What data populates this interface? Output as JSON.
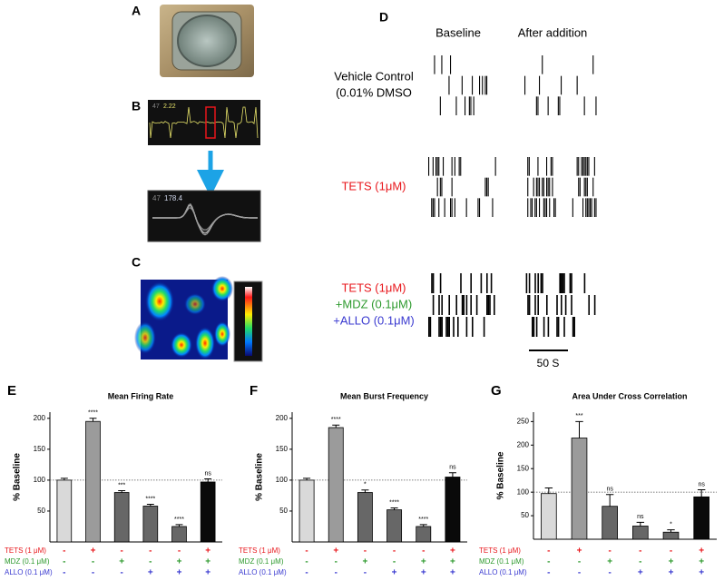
{
  "panel_letters": [
    "A",
    "B",
    "C",
    "D"
  ],
  "trace_labels": [
    "47",
    "2.22"
  ],
  "inset_labels": [
    "47",
    "178.4"
  ],
  "raster": {
    "column_titles": [
      "Baseline",
      "After addition"
    ],
    "row_labels": [
      [
        "Vehicle Control",
        "(0.01% DMSO"
      ],
      [
        "TETS (1μM)"
      ],
      [
        "TETS (1μM)",
        "+MDZ (0.1μM)",
        "+ALLO (0.1μM)"
      ]
    ],
    "row_label_colors": [
      [
        "#000000",
        "#000000"
      ],
      [
        "#e8161b"
      ],
      [
        "#e8161b",
        "#2e9a2e",
        "#3a3ad0"
      ]
    ],
    "scale_bar": "50 S"
  },
  "chart_data": [
    {
      "type": "bar",
      "panel": "E",
      "title": "Mean Firing Rate",
      "y_label": "% Baseline",
      "ylim": [
        0,
        210
      ],
      "yticks": [
        50,
        100,
        150,
        200
      ],
      "refline": 100,
      "values": [
        100,
        195,
        80,
        58,
        25,
        97
      ],
      "errors": [
        3,
        5,
        3,
        3,
        3,
        5
      ],
      "sig_labels": [
        null,
        "****",
        "***",
        "****",
        "****",
        "ns"
      ],
      "colors": [
        "#d9d9d9",
        "#9b9b9b",
        "#676767",
        "#676767",
        "#676767",
        "#0a0a0a"
      ],
      "conditions": [
        {
          "name": "TETS (1 μM)",
          "color": "#e8161b",
          "signs": [
            "-",
            "+",
            "-",
            "-",
            "-",
            "+"
          ]
        },
        {
          "name": "MDZ (0.1 μM)",
          "color": "#2e9a2e",
          "signs": [
            "-",
            "-",
            "+",
            "-",
            "+",
            "+"
          ]
        },
        {
          "name": "ALLO (0.1 μM)",
          "color": "#3a3ad0",
          "signs": [
            "-",
            "-",
            "-",
            "+",
            "+",
            "+"
          ]
        }
      ]
    },
    {
      "type": "bar",
      "panel": "F",
      "title": "Mean Burst Frequency",
      "y_label": "% Baseline",
      "ylim": [
        0,
        210
      ],
      "yticks": [
        50,
        100,
        150,
        200
      ],
      "refline": 100,
      "values": [
        100,
        185,
        80,
        52,
        25,
        105
      ],
      "errors": [
        3,
        4,
        4,
        3,
        3,
        7
      ],
      "sig_labels": [
        null,
        "****",
        "*",
        "****",
        "****",
        "ns"
      ],
      "colors": [
        "#d9d9d9",
        "#9b9b9b",
        "#676767",
        "#676767",
        "#676767",
        "#0a0a0a"
      ],
      "conditions": [
        {
          "name": "TETS (1 μM)",
          "color": "#e8161b",
          "signs": [
            "-",
            "+",
            "-",
            "-",
            "-",
            "+"
          ]
        },
        {
          "name": "MDZ (0.1 μM)",
          "color": "#2e9a2e",
          "signs": [
            "-",
            "-",
            "+",
            "-",
            "+",
            "+"
          ]
        },
        {
          "name": "ALLO (0.1 μM)",
          "color": "#3a3ad0",
          "signs": [
            "-",
            "-",
            "-",
            "+",
            "+",
            "+"
          ]
        }
      ]
    },
    {
      "type": "bar",
      "panel": "G",
      "title": "Area Under Cross Correlation",
      "y_label": "% Baseline",
      "ylim": [
        0,
        270
      ],
      "yticks": [
        50,
        100,
        150,
        200,
        250
      ],
      "refline": 100,
      "values": [
        97,
        215,
        70,
        28,
        15,
        90
      ],
      "errors": [
        12,
        35,
        25,
        8,
        5,
        15
      ],
      "sig_labels": [
        null,
        "***",
        "ns",
        "ns",
        "*",
        "ns"
      ],
      "colors": [
        "#d9d9d9",
        "#9b9b9b",
        "#676767",
        "#676767",
        "#676767",
        "#0a0a0a"
      ],
      "conditions": [
        {
          "name": "TETS (1 μM)",
          "color": "#e8161b",
          "signs": [
            "-",
            "+",
            "-",
            "-",
            "-",
            "+"
          ]
        },
        {
          "name": "MDZ (0.1 μM)",
          "color": "#2e9a2e",
          "signs": [
            "-",
            "-",
            "+",
            "-",
            "+",
            "+"
          ]
        },
        {
          "name": "ALLO (0.1 μM)",
          "color": "#3a3ad0",
          "signs": [
            "-",
            "-",
            "-",
            "+",
            "+",
            "+"
          ]
        }
      ]
    }
  ]
}
